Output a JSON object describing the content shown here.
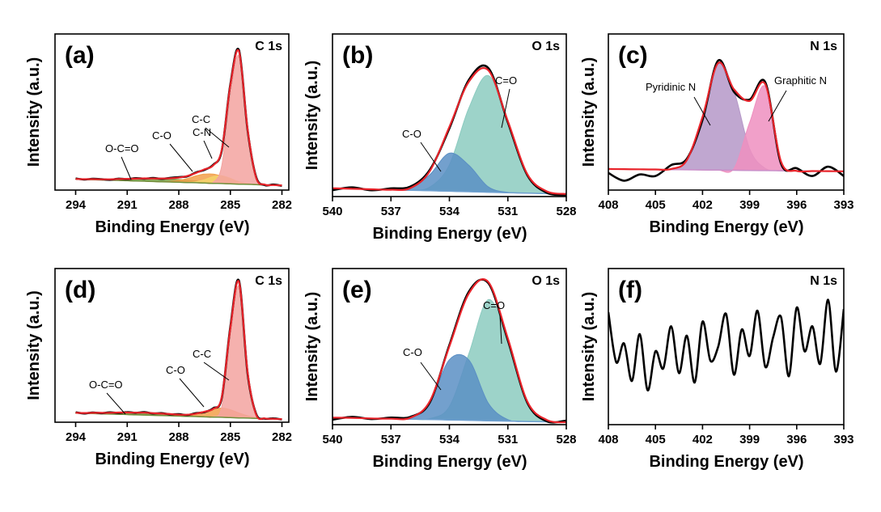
{
  "chart_data": [
    {
      "type": "line",
      "panel_label": "(a)",
      "title": "C 1s",
      "x_label": "Binding Energy (eV)",
      "y_label": "Intensity (a.u.)",
      "x": [
        294,
        293.5,
        293,
        292.5,
        292,
        291.5,
        291,
        290.5,
        290,
        289.5,
        289,
        288.5,
        288,
        287.5,
        287,
        286.5,
        286,
        285.5,
        285,
        284.5,
        284,
        283.5,
        283,
        282.5,
        282
      ],
      "xlim": [
        295.2,
        281.6
      ],
      "xticks": [
        294,
        291,
        288,
        285,
        282
      ],
      "ylim": [
        0,
        100
      ],
      "series": [
        {
          "kind": "baseline",
          "color": "#6f8f3c",
          "values": [
            7,
            6.8,
            6.7,
            6.5,
            6.3,
            6.2,
            6,
            5.8,
            5.7,
            5.5,
            5.3,
            5.2,
            5,
            4.8,
            4.7,
            4.5,
            4.3,
            4.2,
            4,
            3.8,
            3.7,
            3.5,
            3.3,
            3.2,
            3
          ]
        },
        {
          "name": "O-C=O",
          "kind": "area",
          "color": "#7f9c44",
          "values": [
            0.1,
            0.2,
            0.3,
            0.4,
            0.6,
            0.9,
            1.2,
            1.5,
            1.8,
            1.9,
            2,
            1.9,
            1.8,
            1.5,
            1.2,
            0.9,
            0.6,
            0.4,
            0.3,
            0.2,
            0.1,
            0.1,
            0,
            0,
            0
          ]
        },
        {
          "name": "C-O",
          "kind": "area",
          "color": "#f2a04a",
          "values": [
            0,
            0,
            0,
            0,
            0,
            0,
            0,
            0,
            0,
            0,
            0.1,
            0.4,
            1.2,
            2.6,
            4.4,
            5.7,
            5.9,
            4.7,
            2.9,
            1.4,
            0.5,
            0.2,
            0,
            0,
            0
          ]
        },
        {
          "name": "C-N",
          "kind": "area",
          "color": "#f3d36b",
          "values": [
            0,
            0,
            0,
            0,
            0,
            0,
            0,
            0,
            0,
            0,
            0,
            0,
            0,
            0.1,
            0.7,
            2.2,
            4.3,
            5,
            3.5,
            1.5,
            0.4,
            0,
            0,
            0,
            0
          ]
        },
        {
          "name": "C-C",
          "kind": "area",
          "color": "#f3a3a0",
          "values": [
            0,
            0,
            0,
            0,
            0,
            0,
            0,
            0,
            0,
            0,
            0,
            0,
            0,
            0,
            0,
            0,
            0.7,
            11.4,
            56.7,
            82,
            34.5,
            4.2,
            0.2,
            0,
            0
          ]
        },
        {
          "kind": "line",
          "color": "#000000",
          "values": [
            7.4,
            6.8,
            7.2,
            7.0,
            6.6,
            7.3,
            7.0,
            7.6,
            7.3,
            7.7,
            7.2,
            7.8,
            8.3,
            8.8,
            11.3,
            13.0,
            16.2,
            25.2,
            67.9,
            89.6,
            38.6,
            8.4,
            3.2,
            3.5,
            2.7
          ]
        },
        {
          "kind": "line",
          "color": "#e8232a",
          "values": [
            7.1,
            7.0,
            7.0,
            6.9,
            6.9,
            7.1,
            7.2,
            7.3,
            7.5,
            7.4,
            7.4,
            7.5,
            8.0,
            9.0,
            11.0,
            13.3,
            15.8,
            25.7,
            67.4,
            88.9,
            39.2,
            8.0,
            3.5,
            3.2,
            3.0
          ]
        }
      ]
    },
    {
      "type": "line",
      "panel_label": "(b)",
      "title": "O 1s",
      "x_label": "Binding Energy (eV)",
      "y_label": "Intensity (a.u.)",
      "x": [
        540,
        539,
        538,
        537,
        536,
        535,
        534,
        533,
        532,
        531,
        530,
        529,
        528
      ],
      "xlim": [
        540,
        528
      ],
      "xticks": [
        540,
        537,
        534,
        531,
        528
      ],
      "ylim": [
        0,
        100
      ],
      "series": [
        {
          "kind": "baseline",
          "color": "#6fa0d0",
          "values": [
            5.1,
            4.8,
            4.5,
            4.2,
            3.9,
            3.6,
            3.3,
            3.0,
            2.7,
            2.4,
            2.1,
            1.8,
            1.5
          ]
        },
        {
          "name": "C=O",
          "kind": "area",
          "color": "#8ccbc0",
          "values": [
            0,
            0,
            0,
            0,
            0.1,
            2.2,
            16.2,
            51.5,
            71.7,
            43.7,
            11.7,
            1.4,
            0.1
          ]
        },
        {
          "name": "C-O",
          "kind": "area",
          "color": "#5b8fc4",
          "values": [
            0,
            0,
            0,
            0,
            1.2,
            9.9,
            23.4,
            16.2,
            3.2,
            0.2,
            0,
            0,
            0
          ]
        },
        {
          "kind": "line",
          "color": "#000000",
          "values": [
            4.0,
            5.6,
            3.9,
            5.0,
            6.1,
            16.5,
            42.0,
            71.8,
            79.0,
            45.6,
            13.2,
            2.4,
            1.0
          ]
        },
        {
          "kind": "line",
          "color": "#e8232a",
          "values": [
            5.1,
            4.8,
            4.5,
            4.2,
            5.2,
            15.7,
            42.9,
            70.7,
            77.6,
            46.3,
            13.8,
            3.2,
            1.6
          ]
        }
      ]
    },
    {
      "type": "line",
      "panel_label": "(c)",
      "title": "N 1s",
      "x_label": "Binding Energy (eV)",
      "y_label": "Intensity (a.u.)",
      "x": [
        408,
        407,
        406,
        405,
        404,
        403,
        402,
        401,
        400,
        399,
        398,
        397,
        396,
        395,
        394,
        393
      ],
      "xlim": [
        408,
        393
      ],
      "xticks": [
        408,
        405,
        402,
        399,
        396,
        393
      ],
      "ylim": [
        0,
        100
      ],
      "series": [
        {
          "kind": "baseline",
          "color": "#c98fc9",
          "values": [
            13.5,
            13.4,
            13.3,
            13.2,
            13.1,
            13.0,
            12.9,
            12.8,
            12.7,
            12.6,
            12.5,
            12.4,
            12.3,
            12.2,
            12.1,
            12.0
          ]
        },
        {
          "name": "Pyridinic N",
          "kind": "area",
          "color": "#b598c8",
          "values": [
            0,
            0,
            0,
            0,
            0.4,
            6.2,
            34,
            68.6,
            50.8,
            13.9,
            1.4,
            0.1,
            0,
            0,
            0,
            0
          ]
        },
        {
          "name": "Graphitic N",
          "kind": "area",
          "color": "#ee8fbf",
          "values": [
            0,
            0,
            0,
            0,
            0,
            0,
            0,
            0,
            1.1,
            30.6,
            53.8,
            5.8,
            0,
            0,
            0,
            0
          ]
        },
        {
          "kind": "line",
          "color": "#000000",
          "values": [
            11,
            6,
            10,
            9,
            16,
            20,
            45,
            83,
            63,
            58,
            69,
            17,
            14,
            9,
            15,
            9
          ]
        },
        {
          "kind": "line",
          "color": "#e8232a",
          "values": [
            13.5,
            13.4,
            13.3,
            13.2,
            13.5,
            19.2,
            46.9,
            81.4,
            64.6,
            57.1,
            67.7,
            18.3,
            12.3,
            12.2,
            12.1,
            12.0
          ]
        }
      ]
    },
    {
      "type": "line",
      "panel_label": "(d)",
      "title": "C 1s",
      "x_label": "Binding Energy (eV)",
      "y_label": "Intensity (a.u.)",
      "x": [
        294,
        293.5,
        293,
        292.5,
        292,
        291.5,
        291,
        290.5,
        290,
        289.5,
        289,
        288.5,
        288,
        287.5,
        287,
        286.5,
        286,
        285.5,
        285,
        284.5,
        284,
        283.5,
        283,
        282.5,
        282
      ],
      "xlim": [
        295.2,
        281.6
      ],
      "xticks": [
        294,
        291,
        288,
        285,
        282
      ],
      "ylim": [
        0,
        100
      ],
      "series": [
        {
          "kind": "baseline",
          "color": "#6f8f3c",
          "values": [
            6,
            5.8,
            5.7,
            5.5,
            5.3,
            5.2,
            5,
            4.8,
            4.7,
            4.5,
            4.3,
            4.2,
            4,
            3.8,
            3.7,
            3.5,
            3.3,
            3.2,
            3,
            2.8,
            2.7,
            2.5,
            2.3,
            2.2,
            2
          ]
        },
        {
          "name": "O-C=O",
          "kind": "area",
          "color": "#7f9c44",
          "values": [
            0.1,
            0.2,
            0.4,
            0.6,
            0.8,
            1.1,
            1.3,
            1.4,
            1.5,
            1.4,
            1.3,
            1.1,
            0.8,
            0.6,
            0.4,
            0.2,
            0.1,
            0.1,
            0,
            0,
            0,
            0,
            0,
            0,
            0
          ]
        },
        {
          "name": "C-O",
          "kind": "area",
          "color": "#f2a04a",
          "values": [
            0,
            0,
            0,
            0,
            0,
            0,
            0,
            0,
            0,
            0,
            0,
            0,
            0.1,
            0.5,
            1.5,
            3.2,
            5.1,
            6,
            5.1,
            3.2,
            1.5,
            0.5,
            0.1,
            0,
            0
          ]
        },
        {
          "name": "C-C",
          "kind": "area",
          "color": "#f3a3a0",
          "values": [
            0,
            0,
            0,
            0,
            0,
            0,
            0,
            0,
            0,
            0,
            0,
            0,
            0,
            0,
            0,
            0,
            0.2,
            7,
            53.4,
            85.3,
            28.6,
            2,
            0.1,
            0,
            0
          ]
        },
        {
          "kind": "line",
          "color": "#000000",
          "values": [
            6.4,
            5.7,
            6.3,
            5.9,
            6.4,
            6.0,
            6.6,
            6.1,
            6.5,
            5.7,
            5.9,
            5.1,
            5.2,
            4.7,
            5.9,
            6.6,
            9.1,
            15.8,
            62.3,
            92.0,
            31.9,
            5.4,
            2.3,
            2.5,
            1.8
          ]
        },
        {
          "kind": "line",
          "color": "#e8232a",
          "values": [
            6.1,
            6.0,
            6.1,
            6.1,
            6.1,
            6.3,
            6.3,
            6.2,
            6.2,
            5.9,
            5.6,
            5.3,
            4.9,
            4.9,
            5.6,
            6.9,
            8.7,
            16.3,
            61.5,
            91.3,
            32.8,
            5.0,
            2.5,
            2.2,
            2.0
          ]
        }
      ]
    },
    {
      "type": "line",
      "panel_label": "(e)",
      "title": "O 1s",
      "x_label": "Binding Energy (eV)",
      "y_label": "Intensity (a.u.)",
      "x": [
        540,
        539,
        538,
        537,
        536,
        535,
        534,
        533,
        532,
        531,
        530,
        529,
        528
      ],
      "xlim": [
        540,
        528
      ],
      "xticks": [
        540,
        537,
        534,
        531,
        528
      ],
      "ylim": [
        0,
        100
      ],
      "series": [
        {
          "kind": "baseline",
          "color": "#6fa0d0",
          "values": [
            4.5,
            4.3,
            4,
            3.8,
            3.5,
            3.3,
            3,
            2.8,
            2.5,
            2.3,
            2,
            1.8,
            1.5
          ]
        },
        {
          "name": "C=O",
          "kind": "area",
          "color": "#8ccbc0",
          "values": [
            0,
            0,
            0,
            0,
            0,
            0.6,
            8.6,
            42.7,
            77.6,
            52,
            12.8,
            1.2,
            0
          ]
        },
        {
          "name": "C-O",
          "kind": "area",
          "color": "#5b8fc4",
          "values": [
            0,
            0,
            0,
            0,
            0.9,
            11.2,
            38.6,
            38.6,
            11.2,
            0.9,
            0,
            0,
            0
          ]
        },
        {
          "kind": "line",
          "color": "#000000",
          "values": [
            3.2,
            5.0,
            3.6,
            4.5,
            5.0,
            14.4,
            51.0,
            85.2,
            90.6,
            54.0,
            14.1,
            2.2,
            2.6
          ]
        },
        {
          "kind": "line",
          "color": "#e8232a",
          "values": [
            4.5,
            4.3,
            4.0,
            3.8,
            4.4,
            15.1,
            50.2,
            84.1,
            91.3,
            55.2,
            14.8,
            3.0,
            1.5
          ]
        }
      ]
    },
    {
      "type": "line",
      "panel_label": "(f)",
      "title": "N 1s",
      "x_label": "Binding Energy (eV)",
      "y_label": "Intensity (a.u.)",
      "x": [
        408,
        407.5,
        407,
        406.5,
        406,
        405.5,
        405,
        404.5,
        404,
        403.5,
        403,
        402.5,
        402,
        401.5,
        401,
        400.5,
        400,
        399.5,
        399,
        398.5,
        398,
        397.5,
        397,
        396.5,
        396,
        395.5,
        395,
        394.5,
        394,
        393.5,
        393
      ],
      "xlim": [
        408,
        393
      ],
      "xticks": [
        408,
        405,
        402,
        399,
        396,
        393
      ],
      "ylim": [
        0,
        100
      ],
      "series": [
        {
          "kind": "line",
          "color": "#000000",
          "values": [
            72,
            40,
            52,
            28,
            58,
            22,
            47,
            36,
            63,
            33,
            57,
            27,
            66,
            41,
            50,
            71,
            32,
            61,
            44,
            73,
            37,
            56,
            69,
            31,
            75,
            47,
            63,
            39,
            80,
            34,
            74
          ]
        }
      ]
    }
  ]
}
